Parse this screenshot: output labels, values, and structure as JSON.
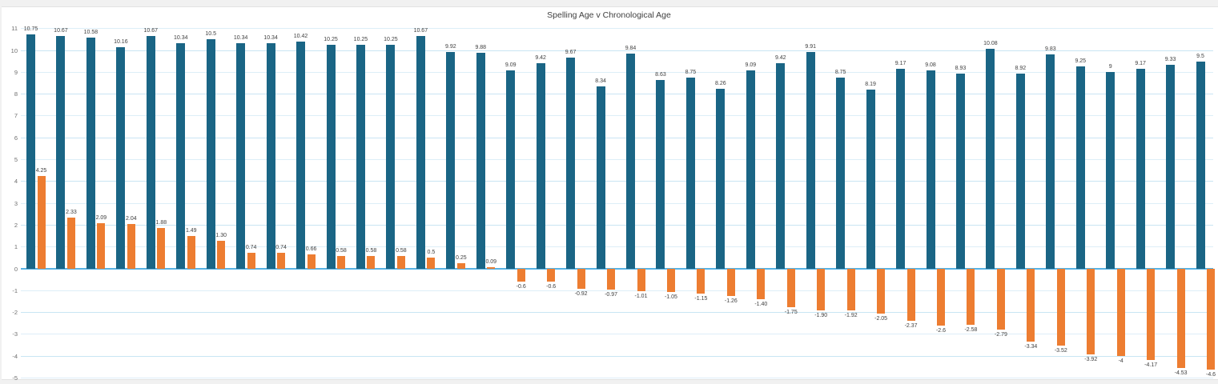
{
  "title": "Spelling Age v Chronological Age",
  "chart_data": {
    "type": "bar",
    "title": "Spelling Age v Chronological Age",
    "xlabel": "",
    "ylabel": "",
    "categories": [
      "",
      "",
      "",
      "",
      "",
      "",
      "",
      "",
      "",
      "",
      "",
      "",
      "",
      "",
      "",
      "",
      "",
      "",
      "",
      "",
      "",
      "",
      "",
      "",
      "",
      "",
      "",
      "",
      "",
      "",
      "",
      "",
      "",
      "",
      "",
      "",
      "",
      "",
      "",
      ""
    ],
    "ylim": [
      -5,
      11
    ],
    "yticks": [
      11,
      10,
      9,
      8,
      7,
      6,
      5,
      4,
      3,
      2,
      1,
      0,
      -1,
      -2,
      -3,
      -4,
      -5
    ],
    "grid": "on",
    "legend": "none",
    "series": [
      {
        "name": "blue-series",
        "color": "#1a6585",
        "values": [
          10.75,
          10.67,
          10.58,
          10.16,
          10.67,
          10.34,
          10.5,
          10.34,
          10.34,
          10.42,
          10.25,
          10.25,
          10.25,
          10.67,
          9.92,
          9.88,
          9.09,
          9.42,
          9.67,
          8.34,
          9.84,
          8.63,
          8.75,
          8.26,
          9.09,
          9.42,
          9.91,
          8.75,
          8.19,
          9.17,
          9.08,
          8.93,
          10.08,
          8.92,
          9.83,
          9.25,
          9,
          9.17,
          9.33,
          9.5
        ],
        "labels": [
          "10.75",
          "10.67",
          "10.58",
          "10.16",
          "10.67",
          "10.34",
          "10.5",
          "10.34",
          "10.34",
          "10.42",
          "10.25",
          "10.25",
          "10.25",
          "10.67",
          "9.92",
          "9.88",
          "9.09",
          "9.42",
          "9.67",
          "8.34",
          "9.84",
          "8.63",
          "8.75",
          "8.26",
          "9.09",
          "9.42",
          "9.91",
          "8.75",
          "8.19",
          "9.17",
          "9.08",
          "8.93",
          "10.08",
          "8.92",
          "9.83",
          "9.25",
          "9",
          "9.17",
          "9.33",
          "9.5"
        ]
      },
      {
        "name": "orange-series",
        "color": "#ed7d31",
        "values": [
          4.25,
          2.33,
          2.09,
          2.04,
          1.88,
          1.49,
          1.3,
          0.74,
          0.74,
          0.66,
          0.58,
          0.58,
          0.58,
          0.5,
          0.25,
          0.09,
          -0.6,
          -0.6,
          -0.92,
          -0.97,
          -1.01,
          -1.05,
          -1.15,
          -1.26,
          -1.4,
          -1.75,
          -1.9,
          -1.92,
          -2.05,
          -2.37,
          -2.6,
          -2.58,
          -2.79,
          -3.34,
          -3.52,
          -3.92,
          -4,
          -4.17,
          -4.53,
          -4.6
        ],
        "labels": [
          "4.25",
          "2.33",
          "2.09",
          "2.04",
          "1.88",
          "1.49",
          "1.30",
          "0.74",
          "0.74",
          "0.66",
          "0.58",
          "0.58",
          "0.58",
          "0.5",
          "0.25",
          "0.09",
          "-0.6",
          "-0.6",
          "-0.92",
          "-0.97",
          "-1.01",
          "-1.05",
          "-1.15",
          "-1.26",
          "-1.40",
          "-1.75",
          "-1.90",
          "-1.92",
          "-2.05",
          "-2.37",
          "-2.6",
          "-2.58",
          "-2.79",
          "-3.34",
          "-3.52",
          "-3.92",
          "-4",
          "-4.17",
          "-4.53",
          "-4.6"
        ]
      }
    ]
  },
  "colors": {
    "blue_series": "#1a6585",
    "orange_series": "#ed7d31",
    "gridline": "#ddeef8",
    "gridline_even": "#c9e5f3",
    "zero_line": "#58b2e3",
    "label_text": "#404040",
    "axis_text": "#6e6e6e",
    "frame": "#f1f1f1"
  }
}
